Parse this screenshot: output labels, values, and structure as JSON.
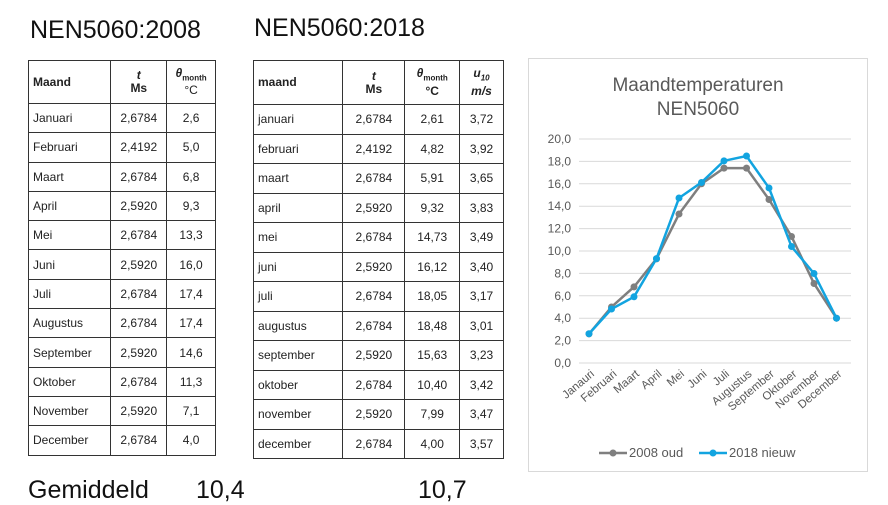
{
  "titles": {
    "t2008": "NEN5060:2008",
    "t2018": "NEN5060:2018"
  },
  "table2008": {
    "headers": {
      "maand": "Maand",
      "t_sym": "t",
      "t_unit": "Ms",
      "theta_sym": "θ",
      "theta_sub": "month",
      "theta_unit": "°C"
    },
    "rows": [
      [
        "Januari",
        "2,6784",
        "2,6"
      ],
      [
        "Februari",
        "2,4192",
        "5,0"
      ],
      [
        "Maart",
        "2,6784",
        "6,8"
      ],
      [
        "April",
        "2,5920",
        "9,3"
      ],
      [
        "Mei",
        "2,6784",
        "13,3"
      ],
      [
        "Juni",
        "2,5920",
        "16,0"
      ],
      [
        "Juli",
        "2,6784",
        "17,4"
      ],
      [
        "Augustus",
        "2,6784",
        "17,4"
      ],
      [
        "September",
        "2,5920",
        "14,6"
      ],
      [
        "Oktober",
        "2,6784",
        "11,3"
      ],
      [
        "November",
        "2,5920",
        "7,1"
      ],
      [
        "December",
        "2,6784",
        "4,0"
      ]
    ]
  },
  "table2018": {
    "headers": {
      "maand": "maand",
      "t_sym": "t",
      "t_unit": "Ms",
      "theta_sym": "θ",
      "theta_sub": "month",
      "theta_unit": "°C",
      "u_sym": "u",
      "u_sub": "10",
      "u_unit": "m/s"
    },
    "rows": [
      [
        "januari",
        "2,6784",
        "2,61",
        "3,72"
      ],
      [
        "februari",
        "2,4192",
        "4,82",
        "3,92"
      ],
      [
        "maart",
        "2,6784",
        "5,91",
        "3,65"
      ],
      [
        "april",
        "2,5920",
        "9,32",
        "3,83"
      ],
      [
        "mei",
        "2,6784",
        "14,73",
        "3,49"
      ],
      [
        "juni",
        "2,5920",
        "16,12",
        "3,40"
      ],
      [
        "juli",
        "2,6784",
        "18,05",
        "3,17"
      ],
      [
        "augustus",
        "2,6784",
        "18,48",
        "3,01"
      ],
      [
        "september",
        "2,5920",
        "15,63",
        "3,23"
      ],
      [
        "oktober",
        "2,6784",
        "10,40",
        "3,42"
      ],
      [
        "november",
        "2,5920",
        "7,99",
        "3,47"
      ],
      [
        "december",
        "2,6784",
        "4,00",
        "3,57"
      ]
    ]
  },
  "bottom": {
    "label": "Gemiddeld",
    "avg2008": "10,4",
    "avg2018": "10,7"
  },
  "chart_data": {
    "type": "line",
    "title": "Maandtemperaturen NEN5060",
    "title_lines": [
      "Maandtemperaturen",
      "NEN5060"
    ],
    "categories": [
      "Janauri",
      "Februari",
      "Maart",
      "April",
      "Mei",
      "Juni",
      "Juli",
      "Augustus",
      "September",
      "Oktober",
      "November",
      "December"
    ],
    "yticks": [
      "0,0",
      "2,0",
      "4,0",
      "6,0",
      "8,0",
      "10,0",
      "12,0",
      "14,0",
      "16,0",
      "18,0",
      "20,0"
    ],
    "ylim": [
      0,
      20
    ],
    "grid": true,
    "legend": "bottom",
    "series": [
      {
        "name": "2008 oud",
        "color": "#7f7f7f",
        "values": [
          2.6,
          5.0,
          6.8,
          9.3,
          13.3,
          16.0,
          17.4,
          17.4,
          14.6,
          11.3,
          7.1,
          4.0
        ]
      },
      {
        "name": "2018 nieuw",
        "color": "#12a4e0",
        "values": [
          2.61,
          4.82,
          5.91,
          9.32,
          14.73,
          16.12,
          18.05,
          18.48,
          15.63,
          10.4,
          7.99,
          4.0
        ]
      }
    ]
  }
}
